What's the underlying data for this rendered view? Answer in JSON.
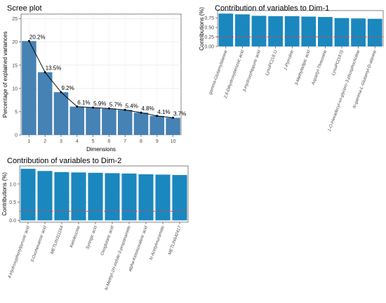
{
  "chart_data": [
    {
      "type": "bar",
      "title": "Scree plot",
      "xlabel": "Dimensions",
      "ylabel": "Percentage of explained variances",
      "categories": [
        "1",
        "2",
        "3",
        "4",
        "5",
        "6",
        "7",
        "8",
        "9",
        "10"
      ],
      "values": [
        20.2,
        13.5,
        9.2,
        6.1,
        5.9,
        5.7,
        5.4,
        4.8,
        4.1,
        3.7
      ],
      "data_labels": [
        "20.2%",
        "13.5%",
        "9.2%",
        "6.1%",
        "5.9%",
        "5.7%",
        "5.4%",
        "4.8%",
        "4.1%",
        "3.7%"
      ],
      "line_overlay": true,
      "ylim": [
        0,
        26
      ],
      "yticks": [
        0,
        5,
        10,
        15,
        20,
        25
      ],
      "grid": true,
      "bar_color": "#4682b4",
      "line_color": "#000000"
    },
    {
      "type": "bar",
      "title": "Contribution of variables to Dim-1",
      "xlabel": "",
      "ylabel": "Contributions (%)",
      "categories": [
        "gamma-Glutamylalanine",
        "2,6-Dihydroxybenzoic acid",
        "3-Hydroxyhippuric acid",
        "LysoPC(18:1)",
        "1-Pyrroline",
        "3-Methyladipic acid",
        "Aspartyl-Threonine",
        "LysoPC(18:0)",
        "1-O-Hexadecyl-sn-glycero-3-phosphocholine",
        "N-gamma-L-Glutamyl-D-alanine"
      ],
      "values": [
        0.87,
        0.85,
        0.81,
        0.8,
        0.8,
        0.79,
        0.78,
        0.75,
        0.74,
        0.73
      ],
      "reference_line": 0.25,
      "ylim": [
        0,
        0.95
      ],
      "yticks": [
        0.0,
        0.25,
        0.5,
        0.75
      ],
      "ytick_labels": [
        "0.00",
        "0.25",
        "0.50",
        "0.75"
      ],
      "grid": true,
      "bar_color": "#1b87bf",
      "reference_color": "#e8422f"
    },
    {
      "type": "bar",
      "title": "Contribution of variables to Dim-2",
      "xlabel": "",
      "ylabel": "Contributions (%)",
      "categories": [
        "4-Hydroxyphenylpyruvic acid",
        "3-Oxohexanoic acid",
        "METLIN311164",
        "Ketoleucine",
        "Syringic acid",
        "Oxoglutaric acid",
        "N-Methyl-1H-indole-3-propanamide",
        "alpha-Ketoisovaleric acid",
        "N-Acetylmuramate",
        "METLIN642417"
      ],
      "values": [
        1.42,
        1.36,
        1.33,
        1.32,
        1.31,
        1.3,
        1.29,
        1.27,
        1.26,
        1.25
      ],
      "reference_line": 0.25,
      "ylim": [
        -0.05,
        1.5
      ],
      "yticks": [
        0.0,
        0.5,
        1.0
      ],
      "ytick_labels": [
        "0.0",
        "0.5",
        "1.0"
      ],
      "grid": true,
      "bar_color": "#1b87bf",
      "reference_color": "#e8422f"
    }
  ]
}
